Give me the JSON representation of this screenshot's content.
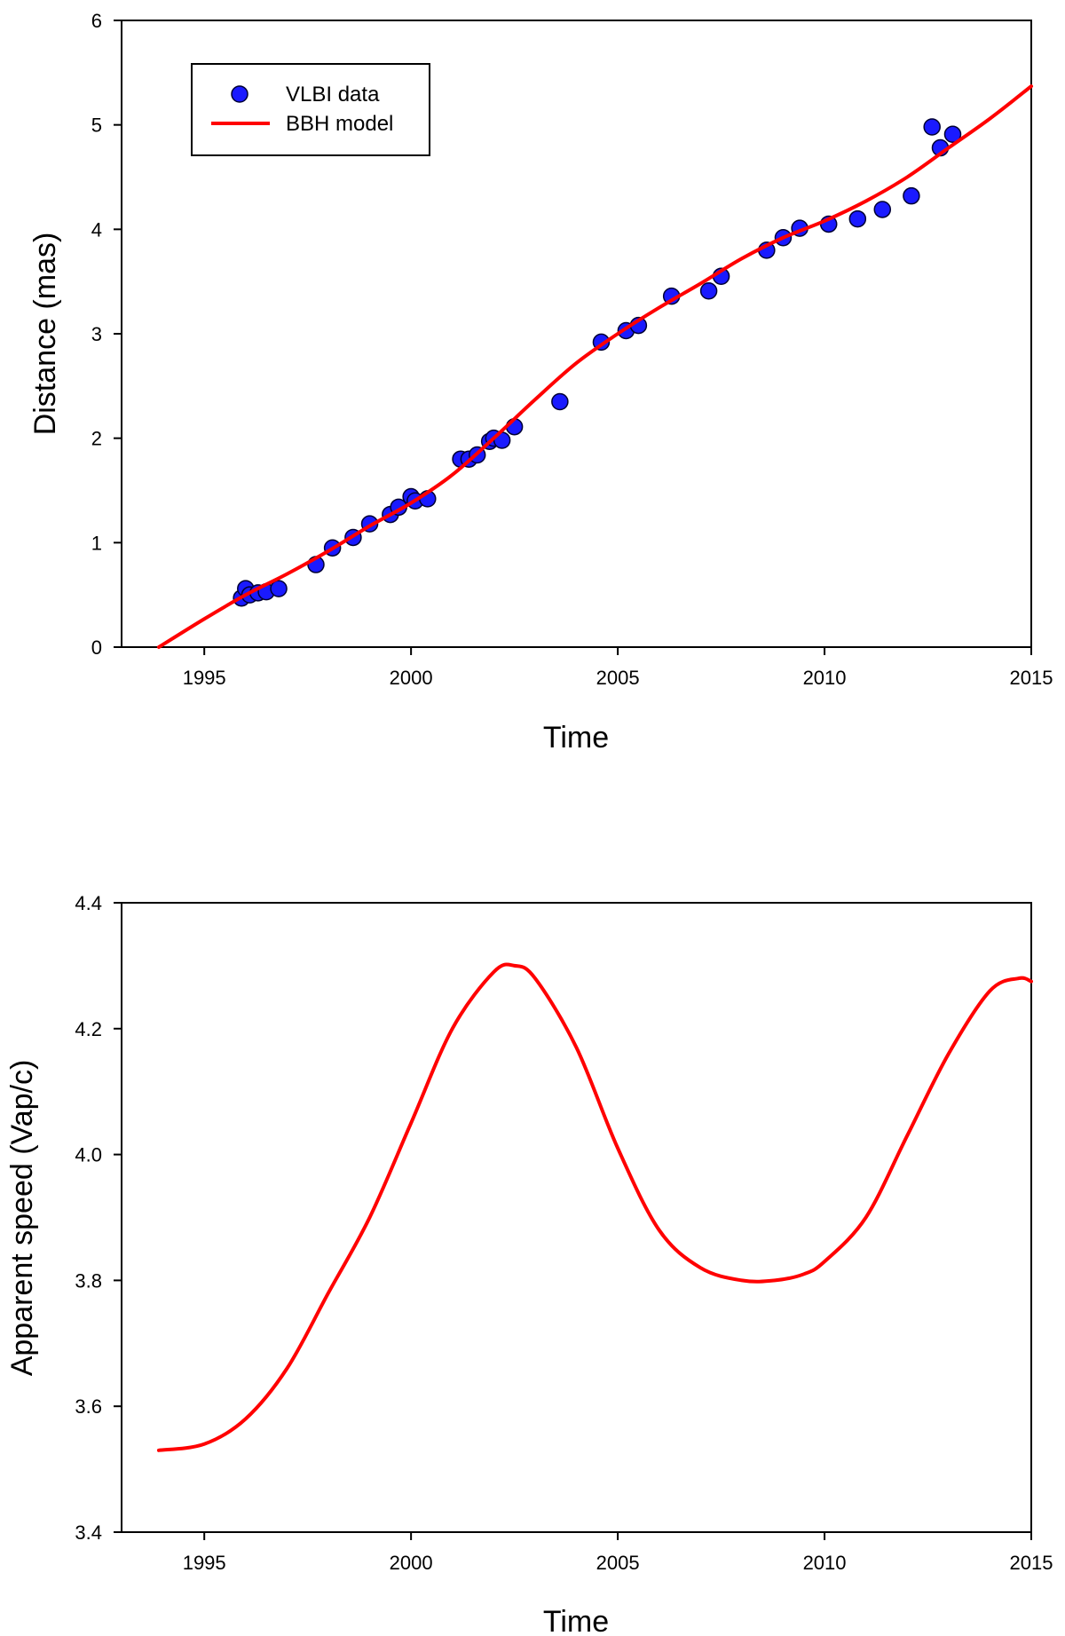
{
  "chart_data": [
    {
      "type": "scatter",
      "xlabel": "Time",
      "ylabel": "Distance (mas)",
      "xlim": [
        1993,
        2015
      ],
      "ylim": [
        0,
        6
      ],
      "xticks": [
        1995,
        2000,
        2005,
        2010,
        2015
      ],
      "yticks": [
        0,
        1,
        2,
        3,
        4,
        5,
        6
      ],
      "grid": false,
      "legend": {
        "position": "top-left",
        "entries": [
          {
            "label": "VLBI data",
            "marker": "circle",
            "color": "#1a1aff"
          },
          {
            "label": "BBH model",
            "marker": "line",
            "color": "#ff0000"
          }
        ]
      },
      "series": [
        {
          "name": "VLBI data",
          "kind": "points",
          "color": "#1a1aff",
          "x": [
            1995.9,
            1996.0,
            1996.1,
            1996.3,
            1996.5,
            1996.8,
            1997.7,
            1998.1,
            1998.6,
            1999.0,
            1999.5,
            1999.7,
            2000.0,
            2000.1,
            2000.4,
            2001.2,
            2001.4,
            2001.6,
            2001.9,
            2002.0,
            2002.2,
            2002.5,
            2003.6,
            2004.6,
            2005.2,
            2005.5,
            2006.3,
            2007.2,
            2007.5,
            2008.6,
            2009.0,
            2009.4,
            2010.1,
            2010.8,
            2011.4,
            2012.1,
            2012.6,
            2012.8,
            2013.1
          ],
          "y": [
            0.47,
            0.56,
            0.5,
            0.52,
            0.53,
            0.56,
            0.79,
            0.95,
            1.05,
            1.18,
            1.27,
            1.34,
            1.44,
            1.4,
            1.42,
            1.8,
            1.8,
            1.84,
            1.97,
            2.0,
            1.98,
            2.11,
            2.35,
            2.92,
            3.03,
            3.08,
            3.36,
            3.41,
            3.55,
            3.8,
            3.92,
            4.01,
            4.05,
            4.1,
            4.19,
            4.32,
            4.98,
            4.78,
            4.91
          ]
        },
        {
          "name": "BBH model",
          "kind": "line",
          "color": "#ff0000",
          "x": [
            1993.9,
            1995.0,
            1996.0,
            1997.0,
            1998.0,
            1999.0,
            2000.0,
            2001.0,
            2002.0,
            2003.0,
            2004.0,
            2005.0,
            2006.0,
            2007.0,
            2008.0,
            2009.0,
            2010.0,
            2011.0,
            2012.0,
            2013.0,
            2014.0,
            2015.0
          ],
          "y": [
            0.0,
            0.27,
            0.5,
            0.7,
            0.92,
            1.16,
            1.38,
            1.65,
            2.0,
            2.37,
            2.72,
            3.0,
            3.25,
            3.48,
            3.72,
            3.92,
            4.08,
            4.27,
            4.5,
            4.78,
            5.06,
            5.37
          ]
        }
      ]
    },
    {
      "type": "line",
      "xlabel": "Time",
      "ylabel": "Apparent speed (Vap/c)",
      "xlim": [
        1993,
        2015
      ],
      "ylim": [
        3.4,
        4.4
      ],
      "xticks": [
        1995,
        2000,
        2005,
        2010,
        2015
      ],
      "yticks": [
        "3.4",
        "3.6",
        "3.8",
        "4.0",
        "4.2",
        "4.4"
      ],
      "grid": false,
      "series": [
        {
          "name": "BBH model",
          "color": "#ff0000",
          "x": [
            1993.9,
            1995.0,
            1996.0,
            1997.0,
            1998.0,
            1999.0,
            2000.0,
            2001.0,
            2002.0,
            2002.5,
            2003.0,
            2004.0,
            2005.0,
            2006.0,
            2007.0,
            2008.0,
            2008.8,
            2009.5,
            2010.0,
            2011.0,
            2012.0,
            2013.0,
            2014.0,
            2014.7,
            2015.0
          ],
          "y": [
            3.53,
            3.54,
            3.58,
            3.66,
            3.78,
            3.9,
            4.05,
            4.2,
            4.29,
            4.3,
            4.28,
            4.17,
            4.01,
            3.88,
            3.82,
            3.8,
            3.8,
            3.81,
            3.83,
            3.9,
            4.03,
            4.16,
            4.26,
            4.28,
            4.275
          ]
        }
      ]
    }
  ]
}
